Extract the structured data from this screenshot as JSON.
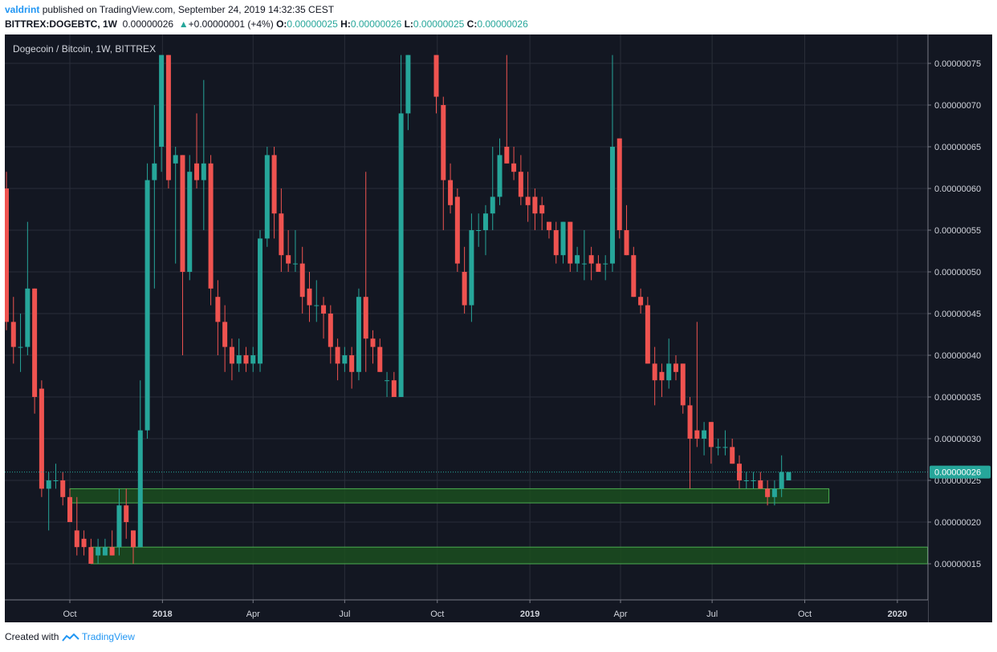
{
  "header": {
    "author": "valdrint",
    "published_text": "published on TradingView.com, September 24, 2019 14:32:35 CEST",
    "symbol": "BITTREX:DOGEBTC, 1W",
    "last_price": "0.00000026",
    "change_arrow": "▲",
    "change": "+0.00000001 (+4%)",
    "o_label": "O:",
    "o_value": "0.00000025",
    "h_label": "H:",
    "h_value": "0.00000026",
    "l_label": "L:",
    "l_value": "0.00000025",
    "c_label": "C:",
    "c_value": "0.00000026"
  },
  "footer": {
    "created_with": "Created with",
    "brand": "TradingView"
  },
  "colors": {
    "background": "#131722",
    "grid": "#2a2e39",
    "up": "#26a69a",
    "down": "#ef5350",
    "zone_fill": "#1b4d1f",
    "zone_stroke": "#4caf50",
    "axis_text": "#d1d4dc",
    "price_badge": "#26a69a"
  },
  "chart_data": {
    "type": "candlestick",
    "title": "Dogecoin / Bitcoin, 1W, BITTREX",
    "y_axis": {
      "ticks": [
        "0.00000075",
        "0.00000070",
        "0.00000065",
        "0.00000060",
        "0.00000055",
        "0.00000050",
        "0.00000045",
        "0.00000040",
        "0.00000035",
        "0.00000030",
        "0.00000025",
        "0.00000020",
        "0.00000015"
      ],
      "unit_scale": 1e-08,
      "ylim": [
        11,
        76
      ]
    },
    "x_axis": {
      "ticks": [
        "Oct",
        "2018",
        "Apr",
        "Jul",
        "Oct",
        "2019",
        "Apr",
        "Jul",
        "Oct",
        "2020"
      ],
      "bold_ticks": [
        "2018",
        "2019",
        "2020"
      ],
      "range": [
        "2017-07-23",
        "2020-02-05"
      ]
    },
    "current_price": {
      "label": "0.00000026",
      "value": 26
    },
    "support_zones": [
      {
        "from": "2017-10-01",
        "to": "2019-10-25",
        "low": 22.3,
        "high": 24
      },
      {
        "from": "2017-10-22",
        "to": "2020-01-31",
        "low": 15,
        "high": 17
      }
    ],
    "candles": [
      {
        "t": "2017-07-23",
        "o": 61,
        "h": 69,
        "l": 56,
        "c": 58
      },
      {
        "t": "2017-07-30",
        "o": 60,
        "h": 62,
        "l": 43,
        "c": 44
      },
      {
        "t": "2017-08-06",
        "o": 44,
        "h": 47,
        "l": 39,
        "c": 41
      },
      {
        "t": "2017-08-13",
        "o": 41,
        "h": 45,
        "l": 38,
        "c": 41
      },
      {
        "t": "2017-08-20",
        "o": 41,
        "h": 56,
        "l": 40,
        "c": 48
      },
      {
        "t": "2017-08-27",
        "o": 48,
        "h": 48,
        "l": 33,
        "c": 35
      },
      {
        "t": "2017-09-03",
        "o": 36,
        "h": 37,
        "l": 23,
        "c": 24
      },
      {
        "t": "2017-09-10",
        "o": 24,
        "h": 26,
        "l": 19,
        "c": 25
      },
      {
        "t": "2017-09-17",
        "o": 25,
        "h": 27,
        "l": 24,
        "c": 25
      },
      {
        "t": "2017-09-24",
        "o": 25,
        "h": 26,
        "l": 22,
        "c": 23
      },
      {
        "t": "2017-10-01",
        "o": 23,
        "h": 24,
        "l": 20,
        "c": 20
      },
      {
        "t": "2017-10-08",
        "o": 19,
        "h": 23,
        "l": 16,
        "c": 17
      },
      {
        "t": "2017-10-15",
        "o": 18,
        "h": 19,
        "l": 16,
        "c": 17
      },
      {
        "t": "2017-10-22",
        "o": 17,
        "h": 18,
        "l": 15,
        "c": 15
      },
      {
        "t": "2017-10-29",
        "o": 16,
        "h": 18,
        "l": 15,
        "c": 17
      },
      {
        "t": "2017-11-05",
        "o": 16,
        "h": 18,
        "l": 16,
        "c": 17
      },
      {
        "t": "2017-11-12",
        "o": 17,
        "h": 19,
        "l": 16,
        "c": 16
      },
      {
        "t": "2017-11-19",
        "o": 17,
        "h": 24,
        "l": 16,
        "c": 22
      },
      {
        "t": "2017-11-26",
        "o": 22,
        "h": 24,
        "l": 18,
        "c": 20
      },
      {
        "t": "2017-12-03",
        "o": 19,
        "h": 19,
        "l": 15,
        "c": 17
      },
      {
        "t": "2017-12-10",
        "o": 17,
        "h": 37,
        "l": 17,
        "c": 31
      },
      {
        "t": "2017-12-17",
        "o": 31,
        "h": 63,
        "l": 30,
        "c": 61
      },
      {
        "t": "2017-12-24",
        "o": 61,
        "h": 70,
        "l": 48,
        "c": 63
      },
      {
        "t": "2017-12-31",
        "o": 65,
        "h": 76,
        "l": 62,
        "c": 76
      },
      {
        "t": "2018-01-07",
        "o": 76,
        "h": 76,
        "l": 60,
        "c": 61
      },
      {
        "t": "2018-01-14",
        "o": 63,
        "h": 65,
        "l": 51,
        "c": 64
      },
      {
        "t": "2018-01-21",
        "o": 64,
        "h": 64,
        "l": 40,
        "c": 50
      },
      {
        "t": "2018-01-28",
        "o": 50,
        "h": 64,
        "l": 49,
        "c": 62
      },
      {
        "t": "2018-02-04",
        "o": 63,
        "h": 69,
        "l": 60,
        "c": 61
      },
      {
        "t": "2018-02-11",
        "o": 61,
        "h": 73,
        "l": 55,
        "c": 63
      },
      {
        "t": "2018-02-18",
        "o": 63,
        "h": 64,
        "l": 46,
        "c": 48
      },
      {
        "t": "2018-02-25",
        "o": 47,
        "h": 49,
        "l": 40,
        "c": 44
      },
      {
        "t": "2018-03-04",
        "o": 44,
        "h": 46,
        "l": 38,
        "c": 41
      },
      {
        "t": "2018-03-11",
        "o": 41,
        "h": 42,
        "l": 37,
        "c": 39
      },
      {
        "t": "2018-03-18",
        "o": 39,
        "h": 42,
        "l": 38,
        "c": 40
      },
      {
        "t": "2018-03-25",
        "o": 40,
        "h": 41,
        "l": 38,
        "c": 39
      },
      {
        "t": "2018-04-01",
        "o": 39,
        "h": 41,
        "l": 38,
        "c": 40
      },
      {
        "t": "2018-04-08",
        "o": 39,
        "h": 55,
        "l": 38,
        "c": 54
      },
      {
        "t": "2018-04-15",
        "o": 54,
        "h": 65,
        "l": 53,
        "c": 64
      },
      {
        "t": "2018-04-22",
        "o": 64,
        "h": 65,
        "l": 54,
        "c": 57
      },
      {
        "t": "2018-04-29",
        "o": 57,
        "h": 60,
        "l": 50,
        "c": 52
      },
      {
        "t": "2018-05-06",
        "o": 52,
        "h": 55,
        "l": 50,
        "c": 51
      },
      {
        "t": "2018-05-13",
        "o": 51,
        "h": 55,
        "l": 50,
        "c": 51
      },
      {
        "t": "2018-05-20",
        "o": 51,
        "h": 53,
        "l": 45,
        "c": 47
      },
      {
        "t": "2018-05-27",
        "o": 48,
        "h": 50,
        "l": 44,
        "c": 46
      },
      {
        "t": "2018-06-03",
        "o": 46,
        "h": 49,
        "l": 44,
        "c": 46
      },
      {
        "t": "2018-06-10",
        "o": 46,
        "h": 47,
        "l": 42,
        "c": 45
      },
      {
        "t": "2018-06-17",
        "o": 45,
        "h": 46,
        "l": 39,
        "c": 41
      },
      {
        "t": "2018-06-24",
        "o": 41,
        "h": 42,
        "l": 37,
        "c": 39
      },
      {
        "t": "2018-07-01",
        "o": 39,
        "h": 41,
        "l": 38,
        "c": 40
      },
      {
        "t": "2018-07-08",
        "o": 40,
        "h": 41,
        "l": 36,
        "c": 38
      },
      {
        "t": "2018-07-15",
        "o": 38,
        "h": 48,
        "l": 37,
        "c": 47
      },
      {
        "t": "2018-07-22",
        "o": 47,
        "h": 62,
        "l": 38,
        "c": 42
      },
      {
        "t": "2018-07-29",
        "o": 42,
        "h": 43,
        "l": 39,
        "c": 41
      },
      {
        "t": "2018-08-05",
        "o": 41,
        "h": 42,
        "l": 38,
        "c": 38
      },
      {
        "t": "2018-08-12",
        "o": 37,
        "h": 38,
        "l": 35,
        "c": 37
      },
      {
        "t": "2018-08-19",
        "o": 37,
        "h": 38,
        "l": 35,
        "c": 35
      },
      {
        "t": "2018-08-26",
        "o": 35,
        "h": 76,
        "l": 35,
        "c": 69
      },
      {
        "t": "2018-09-02",
        "o": 69,
        "h": 76,
        "l": 67,
        "c": 76
      },
      {
        "t": "2018-09-30",
        "o": 76,
        "h": 76,
        "l": 69,
        "c": 71
      },
      {
        "t": "2018-10-07",
        "o": 70,
        "h": 71,
        "l": 55,
        "c": 61
      },
      {
        "t": "2018-10-14",
        "o": 61,
        "h": 63,
        "l": 57,
        "c": 58
      },
      {
        "t": "2018-10-21",
        "o": 59,
        "h": 60,
        "l": 50,
        "c": 51
      },
      {
        "t": "2018-10-28",
        "o": 50,
        "h": 53,
        "l": 45,
        "c": 46
      },
      {
        "t": "2018-11-04",
        "o": 46,
        "h": 57,
        "l": 44,
        "c": 55
      },
      {
        "t": "2018-11-11",
        "o": 55,
        "h": 57,
        "l": 53,
        "c": 55
      },
      {
        "t": "2018-11-18",
        "o": 55,
        "h": 58,
        "l": 52,
        "c": 57
      },
      {
        "t": "2018-11-25",
        "o": 57,
        "h": 65,
        "l": 55,
        "c": 59
      },
      {
        "t": "2018-12-02",
        "o": 59,
        "h": 66,
        "l": 58,
        "c": 64
      },
      {
        "t": "2018-12-09",
        "o": 65,
        "h": 76,
        "l": 63,
        "c": 63
      },
      {
        "t": "2018-12-16",
        "o": 63,
        "h": 65,
        "l": 61,
        "c": 62
      },
      {
        "t": "2018-12-23",
        "o": 62,
        "h": 64,
        "l": 58,
        "c": 59
      },
      {
        "t": "2018-12-30",
        "o": 59,
        "h": 62,
        "l": 56,
        "c": 58
      },
      {
        "t": "2019-01-06",
        "o": 59,
        "h": 60,
        "l": 55,
        "c": 57
      },
      {
        "t": "2019-01-13",
        "o": 58,
        "h": 59,
        "l": 55,
        "c": 57
      },
      {
        "t": "2019-01-20",
        "o": 56,
        "h": 56,
        "l": 54,
        "c": 55
      },
      {
        "t": "2019-01-27",
        "o": 55,
        "h": 56,
        "l": 51,
        "c": 52
      },
      {
        "t": "2019-02-03",
        "o": 52,
        "h": 56,
        "l": 51,
        "c": 56
      },
      {
        "t": "2019-02-10",
        "o": 56,
        "h": 56,
        "l": 50,
        "c": 51
      },
      {
        "t": "2019-02-17",
        "o": 51,
        "h": 53,
        "l": 50,
        "c": 52
      },
      {
        "t": "2019-02-24",
        "o": 51,
        "h": 55,
        "l": 49,
        "c": 51
      },
      {
        "t": "2019-03-03",
        "o": 52,
        "h": 53,
        "l": 49,
        "c": 51
      },
      {
        "t": "2019-03-10",
        "o": 51,
        "h": 52,
        "l": 50,
        "c": 50
      },
      {
        "t": "2019-03-17",
        "o": 51,
        "h": 52,
        "l": 49,
        "c": 51
      },
      {
        "t": "2019-03-24",
        "o": 51,
        "h": 76,
        "l": 50,
        "c": 65
      },
      {
        "t": "2019-03-31",
        "o": 66,
        "h": 66,
        "l": 54,
        "c": 55
      },
      {
        "t": "2019-04-07",
        "o": 55,
        "h": 58,
        "l": 52,
        "c": 52
      },
      {
        "t": "2019-04-14",
        "o": 52,
        "h": 53,
        "l": 47,
        "c": 47
      },
      {
        "t": "2019-04-21",
        "o": 47,
        "h": 48,
        "l": 45,
        "c": 46
      },
      {
        "t": "2019-04-28",
        "o": 46,
        "h": 47,
        "l": 39,
        "c": 39
      },
      {
        "t": "2019-05-05",
        "o": 39,
        "h": 41,
        "l": 34,
        "c": 37
      },
      {
        "t": "2019-05-12",
        "o": 38,
        "h": 39,
        "l": 35,
        "c": 37
      },
      {
        "t": "2019-05-19",
        "o": 37,
        "h": 42,
        "l": 36,
        "c": 39
      },
      {
        "t": "2019-05-26",
        "o": 39,
        "h": 40,
        "l": 37,
        "c": 38
      },
      {
        "t": "2019-06-02",
        "o": 39,
        "h": 39,
        "l": 33,
        "c": 34
      },
      {
        "t": "2019-06-09",
        "o": 34,
        "h": 35,
        "l": 24,
        "c": 30
      },
      {
        "t": "2019-06-16",
        "o": 31,
        "h": 44,
        "l": 29,
        "c": 30
      },
      {
        "t": "2019-06-23",
        "o": 30,
        "h": 32,
        "l": 28,
        "c": 31
      },
      {
        "t": "2019-06-30",
        "o": 32,
        "h": 32,
        "l": 27,
        "c": 29
      },
      {
        "t": "2019-07-07",
        "o": 29,
        "h": 30,
        "l": 28,
        "c": 29
      },
      {
        "t": "2019-07-14",
        "o": 29,
        "h": 31,
        "l": 28,
        "c": 29
      },
      {
        "t": "2019-07-21",
        "o": 29,
        "h": 30,
        "l": 27,
        "c": 27
      },
      {
        "t": "2019-07-28",
        "o": 27,
        "h": 28,
        "l": 24,
        "c": 25
      },
      {
        "t": "2019-08-04",
        "o": 25,
        "h": 26,
        "l": 24,
        "c": 25
      },
      {
        "t": "2019-08-11",
        "o": 25,
        "h": 26,
        "l": 24,
        "c": 25
      },
      {
        "t": "2019-08-18",
        "o": 25,
        "h": 26,
        "l": 24,
        "c": 24
      },
      {
        "t": "2019-08-25",
        "o": 24,
        "h": 25,
        "l": 22,
        "c": 23
      },
      {
        "t": "2019-09-01",
        "o": 23,
        "h": 25,
        "l": 22,
        "c": 24
      },
      {
        "t": "2019-09-08",
        "o": 24,
        "h": 28,
        "l": 23,
        "c": 26
      },
      {
        "t": "2019-09-15",
        "o": 25,
        "h": 26,
        "l": 25,
        "c": 26
      }
    ]
  }
}
